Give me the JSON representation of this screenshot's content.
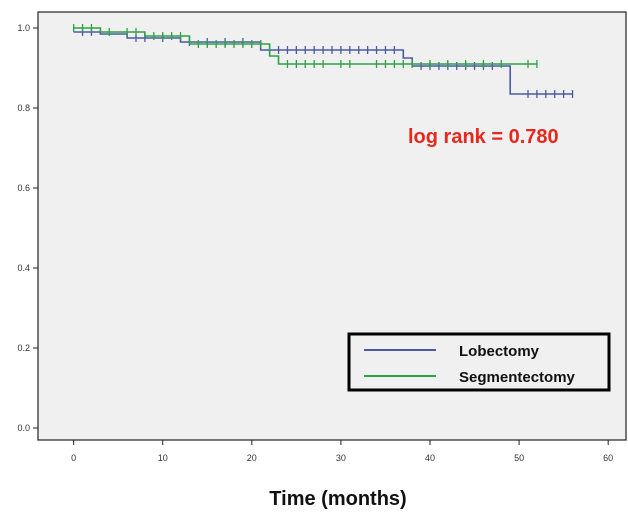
{
  "chart_data": {
    "type": "line",
    "subtype": "step",
    "title": "",
    "xlabel": "Time (months)",
    "ylabel": "",
    "xlim": [
      -4,
      62
    ],
    "ylim": [
      -0.03,
      1.04
    ],
    "xticks": [
      0,
      10,
      20,
      30,
      40,
      50,
      60
    ],
    "yticks": [
      0.0,
      0.2,
      0.4,
      0.6,
      0.8,
      1.0
    ],
    "xtick_labels": [
      "0",
      "10",
      "20",
      "30",
      "40",
      "50",
      "60"
    ],
    "ytick_labels": [
      "0.0",
      "0.2",
      "0.4",
      "0.6",
      "0.8",
      "1.0"
    ],
    "grid": false,
    "legend_position": "bottom-right",
    "annotation": {
      "text": "log rank = 0.780",
      "color": "#e8281e"
    },
    "background_color": "#f0f0f0",
    "series": [
      {
        "name": "Lobectomy",
        "color": "#4b5aa6",
        "steps": [
          [
            0,
            0.99
          ],
          [
            3,
            0.985
          ],
          [
            6,
            0.975
          ],
          [
            12,
            0.965
          ],
          [
            21,
            0.945
          ],
          [
            37,
            0.925
          ],
          [
            38,
            0.905
          ],
          [
            49,
            0.835
          ],
          [
            56,
            0.835
          ]
        ],
        "censored": [
          [
            1,
            0.99
          ],
          [
            2,
            0.99
          ],
          [
            7,
            0.975
          ],
          [
            8,
            0.975
          ],
          [
            10,
            0.975
          ],
          [
            13,
            0.965
          ],
          [
            15,
            0.965
          ],
          [
            17,
            0.965
          ],
          [
            19,
            0.965
          ],
          [
            22,
            0.945
          ],
          [
            23,
            0.945
          ],
          [
            24,
            0.945
          ],
          [
            25,
            0.945
          ],
          [
            26,
            0.945
          ],
          [
            27,
            0.945
          ],
          [
            28,
            0.945
          ],
          [
            29,
            0.945
          ],
          [
            30,
            0.945
          ],
          [
            31,
            0.945
          ],
          [
            32,
            0.945
          ],
          [
            33,
            0.945
          ],
          [
            34,
            0.945
          ],
          [
            35,
            0.945
          ],
          [
            36,
            0.945
          ],
          [
            39,
            0.905
          ],
          [
            40,
            0.905
          ],
          [
            41,
            0.905
          ],
          [
            42,
            0.905
          ],
          [
            43,
            0.905
          ],
          [
            44,
            0.905
          ],
          [
            45,
            0.905
          ],
          [
            46,
            0.905
          ],
          [
            47,
            0.905
          ],
          [
            51,
            0.835
          ],
          [
            52,
            0.835
          ],
          [
            53,
            0.835
          ],
          [
            54,
            0.835
          ],
          [
            55,
            0.835
          ],
          [
            56,
            0.835
          ]
        ]
      },
      {
        "name": "Segmentectomy",
        "color": "#2ca146",
        "steps": [
          [
            0,
            1.0
          ],
          [
            3,
            0.99
          ],
          [
            8,
            0.98
          ],
          [
            13,
            0.96
          ],
          [
            22,
            0.93
          ],
          [
            23,
            0.91
          ],
          [
            52,
            0.91
          ]
        ],
        "censored": [
          [
            0,
            1.0
          ],
          [
            1,
            1.0
          ],
          [
            2,
            1.0
          ],
          [
            4,
            0.99
          ],
          [
            6,
            0.99
          ],
          [
            7,
            0.99
          ],
          [
            9,
            0.98
          ],
          [
            10,
            0.98
          ],
          [
            11,
            0.98
          ],
          [
            12,
            0.98
          ],
          [
            14,
            0.96
          ],
          [
            15,
            0.96
          ],
          [
            16,
            0.96
          ],
          [
            17,
            0.96
          ],
          [
            18,
            0.96
          ],
          [
            19,
            0.96
          ],
          [
            20,
            0.96
          ],
          [
            21,
            0.96
          ],
          [
            24,
            0.91
          ],
          [
            25,
            0.91
          ],
          [
            26,
            0.91
          ],
          [
            27,
            0.91
          ],
          [
            28,
            0.91
          ],
          [
            30,
            0.91
          ],
          [
            31,
            0.91
          ],
          [
            34,
            0.91
          ],
          [
            35,
            0.91
          ],
          [
            36,
            0.91
          ],
          [
            37,
            0.91
          ],
          [
            38,
            0.91
          ],
          [
            40,
            0.91
          ],
          [
            42,
            0.91
          ],
          [
            44,
            0.91
          ],
          [
            46,
            0.91
          ],
          [
            48,
            0.91
          ],
          [
            51,
            0.91
          ],
          [
            52,
            0.91
          ]
        ]
      }
    ]
  }
}
